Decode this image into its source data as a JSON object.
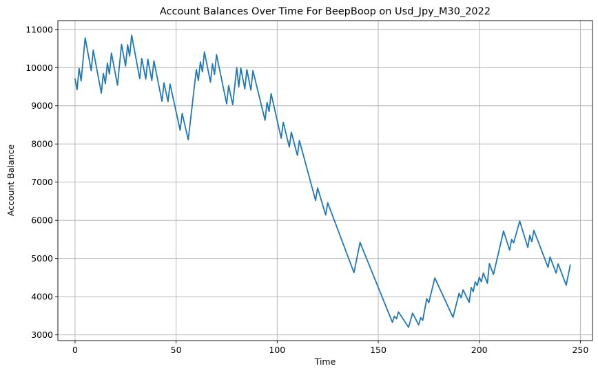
{
  "chart_data": {
    "type": "line",
    "title": "Account Balances Over Time For BeepBoop on Usd_Jpy_M30_2022",
    "xlabel": "Time",
    "ylabel": "Account Balance",
    "xlim": [
      -8.5,
      256
    ],
    "ylim": [
      2850,
      11230
    ],
    "xticks": [
      0,
      50,
      100,
      150,
      200,
      250
    ],
    "yticks": [
      3000,
      4000,
      5000,
      6000,
      7000,
      8000,
      9000,
      10000,
      11000
    ],
    "grid": true,
    "line_color": "#1f77b4",
    "series": [
      {
        "points": [
          [
            0,
            9700
          ],
          [
            1,
            9420
          ],
          [
            2,
            9980
          ],
          [
            3,
            9650
          ],
          [
            5,
            10780
          ],
          [
            8,
            9920
          ],
          [
            9,
            10460
          ],
          [
            13,
            9330
          ],
          [
            14,
            9850
          ],
          [
            15,
            9580
          ],
          [
            16,
            10120
          ],
          [
            17,
            9830
          ],
          [
            18,
            10380
          ],
          [
            21,
            9540
          ],
          [
            23,
            10610
          ],
          [
            25,
            10040
          ],
          [
            26,
            10600
          ],
          [
            27,
            10300
          ],
          [
            28,
            10850
          ],
          [
            32,
            9710
          ],
          [
            33,
            10240
          ],
          [
            35,
            9700
          ],
          [
            36,
            10220
          ],
          [
            38,
            9660
          ],
          [
            39,
            10180
          ],
          [
            43,
            9120
          ],
          [
            44,
            9600
          ],
          [
            46,
            9110
          ],
          [
            47,
            9570
          ],
          [
            52,
            8360
          ],
          [
            53,
            8800
          ],
          [
            56,
            8110
          ],
          [
            60,
            9950
          ],
          [
            61,
            9660
          ],
          [
            62,
            10150
          ],
          [
            63,
            9890
          ],
          [
            64,
            10410
          ],
          [
            67,
            9620
          ],
          [
            68,
            10100
          ],
          [
            69,
            9820
          ],
          [
            70,
            10340
          ],
          [
            75,
            9050
          ],
          [
            76,
            9530
          ],
          [
            78,
            9030
          ],
          [
            80,
            10000
          ],
          [
            81,
            9490
          ],
          [
            82,
            9990
          ],
          [
            84,
            9440
          ],
          [
            85,
            9950
          ],
          [
            87,
            9410
          ],
          [
            88,
            9920
          ],
          [
            94,
            8620
          ],
          [
            95,
            9090
          ],
          [
            96,
            8850
          ],
          [
            97,
            9320
          ],
          [
            102,
            8150
          ],
          [
            103,
            8570
          ],
          [
            106,
            7920
          ],
          [
            107,
            8310
          ],
          [
            110,
            7700
          ],
          [
            111,
            8090
          ],
          [
            119,
            6520
          ],
          [
            120,
            6850
          ],
          [
            124,
            6140
          ],
          [
            125,
            6460
          ],
          [
            138,
            4630
          ],
          [
            141,
            5420
          ],
          [
            157,
            3330
          ],
          [
            158,
            3490
          ],
          [
            159,
            3420
          ],
          [
            160,
            3600
          ],
          [
            165,
            3200
          ],
          [
            167,
            3570
          ],
          [
            170,
            3260
          ],
          [
            171,
            3450
          ],
          [
            172,
            3380
          ],
          [
            174,
            3950
          ],
          [
            175,
            3840
          ],
          [
            178,
            4490
          ],
          [
            187,
            3460
          ],
          [
            190,
            4090
          ],
          [
            191,
            3970
          ],
          [
            192,
            4180
          ],
          [
            195,
            3850
          ],
          [
            196,
            4240
          ],
          [
            197,
            4130
          ],
          [
            198,
            4390
          ],
          [
            199,
            4290
          ],
          [
            200,
            4510
          ],
          [
            201,
            4390
          ],
          [
            202,
            4620
          ],
          [
            204,
            4350
          ],
          [
            205,
            4870
          ],
          [
            207,
            4580
          ],
          [
            211,
            5490
          ],
          [
            212,
            5720
          ],
          [
            215,
            5220
          ],
          [
            216,
            5500
          ],
          [
            217,
            5410
          ],
          [
            220,
            5980
          ],
          [
            224,
            5290
          ],
          [
            225,
            5610
          ],
          [
            226,
            5440
          ],
          [
            227,
            5740
          ],
          [
            234,
            4770
          ],
          [
            235,
            5040
          ],
          [
            238,
            4620
          ],
          [
            239,
            4860
          ],
          [
            243,
            4300
          ],
          [
            245,
            4830
          ]
        ]
      }
    ]
  }
}
